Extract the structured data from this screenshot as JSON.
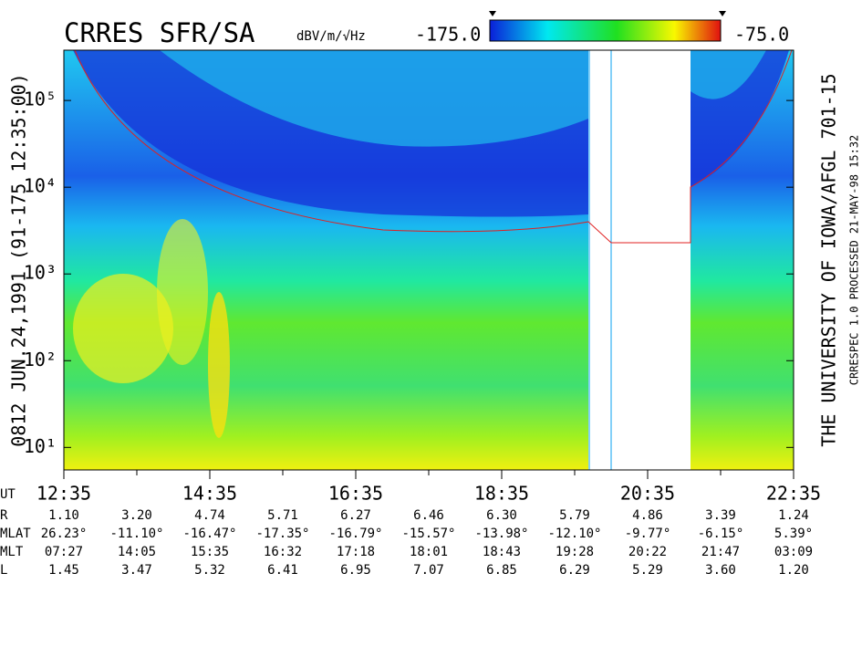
{
  "chart_data": {
    "type": "spectrogram",
    "title": "CRRES SFR/SA",
    "colorbar": {
      "label": "dBV/m/√Hz",
      "min": {
        "value": -175,
        "label": "-175.0"
      },
      "max": {
        "value": -75,
        "label": "-75.0"
      }
    },
    "left_label": "0812   JUN.24,1991   (91-175 12:35:00)",
    "right_label": "THE UNIVERSITY OF IOWA/AFGL 701-15",
    "right_sublabel": "CRRESPEC 1.0   PROCESSED 21-MAY-98   15:32",
    "log_y": true,
    "ylim": [
      5.5,
      380000
    ],
    "yticks": [
      {
        "value": 10,
        "label": "10¹"
      },
      {
        "value": 100,
        "label": "10²"
      },
      {
        "value": 1000,
        "label": "10³"
      },
      {
        "value": 10000,
        "label": "10⁴"
      },
      {
        "value": 100000,
        "label": "10⁵"
      }
    ],
    "x_axis_label": "UT",
    "categories": [
      "12:35",
      "14:35",
      "16:35",
      "18:35",
      "20:35",
      "22:35"
    ],
    "ephemeris": {
      "labels": [
        "R",
        "MLAT",
        "MLT",
        "L"
      ],
      "rows": [
        [
          "1.10",
          "3.20",
          "4.74",
          "5.71",
          "6.27",
          "6.46",
          "6.30",
          "5.79",
          "4.86",
          "3.39",
          "1.24"
        ],
        [
          "26.23°",
          "-11.10°",
          "-16.47°",
          "-17.35°",
          "-16.79°",
          "-15.57°",
          "-13.98°",
          "-12.10°",
          "-9.77°",
          "-6.15°",
          "5.39°"
        ],
        [
          "07:27",
          "14:05",
          "15:35",
          "16:32",
          "17:18",
          "18:01",
          "18:43",
          "19:28",
          "20:22",
          "21:47",
          "03:09"
        ],
        [
          "1.45",
          "3.47",
          "5.32",
          "6.41",
          "6.95",
          "7.07",
          "6.85",
          "6.29",
          "5.29",
          "3.60",
          "1.20"
        ]
      ]
    }
  }
}
